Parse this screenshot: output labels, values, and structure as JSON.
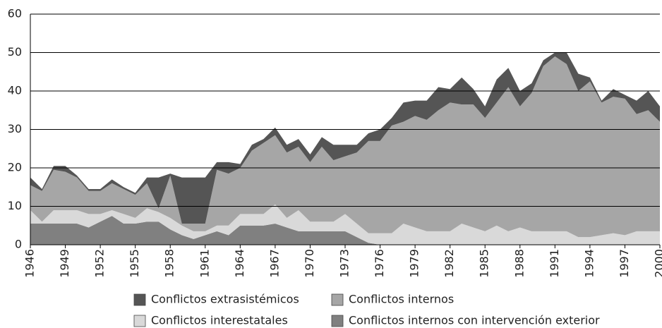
{
  "chart_data": {
    "type": "stacked_area",
    "x": [
      1946,
      1947,
      1948,
      1949,
      1950,
      1951,
      1952,
      1953,
      1954,
      1955,
      1956,
      1957,
      1958,
      1959,
      1960,
      1961,
      1962,
      1963,
      1964,
      1965,
      1966,
      1967,
      1968,
      1969,
      1970,
      1971,
      1972,
      1973,
      1974,
      1975,
      1976,
      1977,
      1978,
      1979,
      1980,
      1981,
      1982,
      1983,
      1984,
      1985,
      1986,
      1987,
      1988,
      1989,
      1990,
      1991,
      1992,
      1993,
      1994,
      1995,
      1996,
      1997,
      1998,
      1999,
      2000
    ],
    "series": [
      {
        "name": "Conflictos extrasistémicos",
        "color": "#555555",
        "values": [
          2,
          0.5,
          1,
          1.5,
          0.5,
          0.5,
          0.5,
          1,
          0.5,
          0.5,
          1.5,
          8,
          0.5,
          12,
          12,
          12,
          2,
          3,
          1,
          1.5,
          1,
          2,
          2,
          2,
          2,
          2.5,
          4,
          3,
          2,
          2,
          3,
          2,
          5,
          4,
          5,
          6,
          3.5,
          7,
          4,
          3,
          6,
          5,
          4,
          2.5,
          1.5,
          1,
          3,
          4.5,
          1,
          0.5,
          2,
          1,
          3.5,
          5,
          4
        ]
      },
      {
        "name": "Conflictos internos",
        "color": "#a6a6a6",
        "values": [
          6.5,
          8,
          10.5,
          10,
          8.5,
          6,
          6,
          7,
          6.5,
          6,
          6.5,
          1,
          11,
          0.5,
          2,
          2,
          14.5,
          13.5,
          12,
          16.5,
          18.5,
          18,
          17,
          16.5,
          15.5,
          19.5,
          16,
          15,
          18.5,
          24,
          24,
          28,
          26.5,
          29,
          29,
          31.5,
          33.5,
          31,
          32,
          29.5,
          32,
          37.5,
          31.5,
          36,
          43,
          45.5,
          43.5,
          38,
          40.5,
          34.5,
          35.5,
          35.5,
          30.5,
          31.5,
          28.5
        ]
      },
      {
        "name": "Conflictos interestatales",
        "color": "#d9d9d9",
        "values": [
          3.5,
          0.5,
          3.5,
          3.5,
          3.5,
          3.5,
          2,
          1.5,
          2.5,
          1.5,
          3.5,
          2.5,
          3,
          2.5,
          2,
          1,
          1.5,
          2.5,
          3,
          3,
          3,
          5,
          2.5,
          5.5,
          2.5,
          2.5,
          2.5,
          4.5,
          3.5,
          2.5,
          3,
          3,
          5.5,
          4.5,
          3.5,
          3.5,
          3.5,
          5.5,
          4.5,
          3.5,
          5,
          3.5,
          4.5,
          3.5,
          3.5,
          3.5,
          3.5,
          2,
          2,
          2.5,
          3,
          2.5,
          3.5,
          3.5,
          3.5
        ]
      },
      {
        "name": "Conflictos internos con intervención exterior",
        "color": "#808080",
        "values": [
          5.5,
          5.5,
          5.5,
          5.5,
          5.5,
          4.5,
          6,
          7.5,
          5.5,
          5.5,
          6,
          6,
          4,
          2.5,
          1.5,
          2.5,
          3.5,
          2.5,
          5,
          5,
          5,
          5.5,
          4.5,
          3.5,
          3.5,
          3.5,
          3.5,
          3.5,
          2,
          0.5,
          0,
          0,
          0,
          0,
          0,
          0,
          0,
          0,
          0,
          0,
          0,
          0,
          0,
          0,
          0,
          0,
          0,
          0,
          0,
          0,
          0,
          0,
          0,
          0,
          0
        ]
      }
    ],
    "xlim": [
      1946,
      2000
    ],
    "xticks": [
      1946,
      1949,
      1952,
      1955,
      1958,
      1961,
      1964,
      1967,
      1970,
      1973,
      1976,
      1979,
      1982,
      1985,
      1988,
      1991,
      1994,
      1997,
      2000
    ],
    "ylim": [
      0,
      60
    ],
    "yticks": [
      0,
      10,
      20,
      30,
      40,
      50,
      60
    ],
    "grid": true
  }
}
